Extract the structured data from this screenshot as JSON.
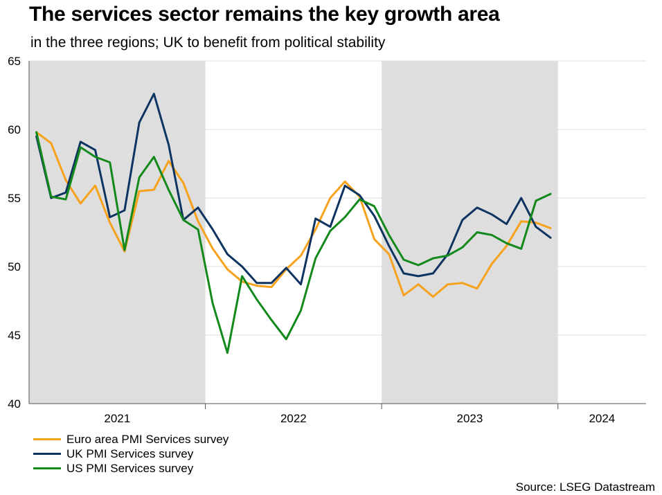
{
  "header": {
    "title": "The services sector remains the key growth area",
    "subtitle": "in the three regions; UK to benefit from political stability"
  },
  "footer": {
    "source": "Source: LSEG Datastream"
  },
  "colors": {
    "euro": "#f7a21c",
    "uk": "#0d3461",
    "us": "#12891a",
    "shade": "#dedede",
    "grid": "#dddddd",
    "axis": "#555555"
  },
  "chart_data": {
    "type": "line",
    "title": "The services sector remains the key growth area",
    "xlabel": "",
    "ylabel": "",
    "ylim": [
      40,
      65
    ],
    "yticks": [
      40,
      45,
      50,
      55,
      60,
      65
    ],
    "grid": true,
    "x_start": "2021-01",
    "year_labels": [
      {
        "label": "2021",
        "start_index": 0,
        "end_index": 11
      },
      {
        "label": "2022",
        "start_index": 12,
        "end_index": 23
      },
      {
        "label": "2023",
        "start_index": 24,
        "end_index": 35
      },
      {
        "label": "2024",
        "start_index": 36,
        "end_index": 41
      }
    ],
    "shaded_years": [
      "2021",
      "2023"
    ],
    "legend_position": "bottom-left",
    "series": [
      {
        "key": "euro",
        "name": "Euro area PMI Services survey",
        "values": [
          59.8,
          59.0,
          56.3,
          54.6,
          55.9,
          53.2,
          51.1,
          55.5,
          55.6,
          57.7,
          56.1,
          53.3,
          51.3,
          49.8,
          48.9,
          48.6,
          48.5,
          49.8,
          50.8,
          52.7,
          55.0,
          56.2,
          55.1,
          52.0,
          50.9,
          47.9,
          48.7,
          47.8,
          48.7,
          48.8,
          48.4,
          50.2,
          51.5,
          53.3,
          53.2,
          52.8
        ]
      },
      {
        "key": "uk",
        "name": "UK PMI Services survey",
        "values": [
          59.5,
          55.0,
          55.4,
          59.1,
          58.5,
          53.6,
          54.1,
          60.5,
          62.6,
          58.9,
          53.4,
          54.3,
          52.7,
          50.9,
          50.0,
          48.8,
          48.8,
          49.9,
          48.7,
          53.5,
          52.9,
          55.9,
          55.2,
          53.7,
          51.5,
          49.5,
          49.3,
          49.5,
          50.9,
          53.4,
          54.3,
          53.8,
          53.1,
          55.0,
          52.9,
          52.1
        ]
      },
      {
        "key": "us",
        "name": "US PMI Services survey",
        "values": [
          59.8,
          55.1,
          54.9,
          58.7,
          58.0,
          57.6,
          51.2,
          56.5,
          58.0,
          55.6,
          53.4,
          52.7,
          47.3,
          43.7,
          49.3,
          47.6,
          46.1,
          44.7,
          46.8,
          50.6,
          52.6,
          53.6,
          54.9,
          54.4,
          52.3,
          50.5,
          50.1,
          50.6,
          50.8,
          51.4,
          52.5,
          52.3,
          51.7,
          51.3,
          54.8,
          55.3
        ]
      }
    ]
  }
}
